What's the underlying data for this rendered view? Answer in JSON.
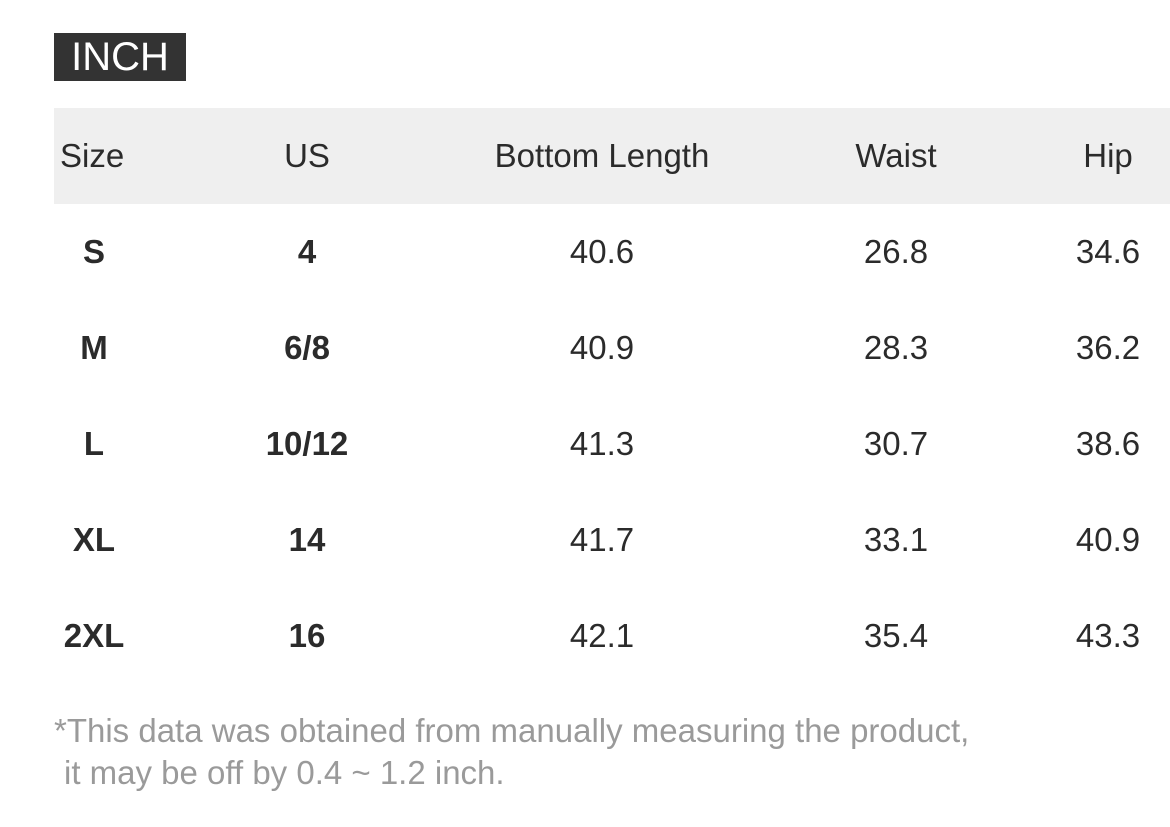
{
  "unit_label": "INCH",
  "table": {
    "headers": {
      "size": "Size",
      "us": "US",
      "bottom_length": "Bottom Length",
      "waist": "Waist",
      "hip": "Hip"
    },
    "rows": [
      {
        "size": "S",
        "us": "4",
        "bottom_length": "40.6",
        "waist": "26.8",
        "hip": "34.6"
      },
      {
        "size": "M",
        "us": "6/8",
        "bottom_length": "40.9",
        "waist": "28.3",
        "hip": "36.2"
      },
      {
        "size": "L",
        "us": "10/12",
        "bottom_length": "41.3",
        "waist": "30.7",
        "hip": "38.6"
      },
      {
        "size": "XL",
        "us": "14",
        "bottom_length": "41.7",
        "waist": "33.1",
        "hip": "40.9"
      },
      {
        "size": "2XL",
        "us": "16",
        "bottom_length": "42.1",
        "waist": "35.4",
        "hip": "43.3"
      }
    ]
  },
  "footnote": {
    "line1": "*This data was obtained from manually measuring the product,",
    "line2": "it may be off by 0.4 ~ 1.2 inch."
  },
  "colors": {
    "badge_background": "#333333",
    "header_background": "#efefef",
    "footnote_text": "#9a9a9a"
  }
}
